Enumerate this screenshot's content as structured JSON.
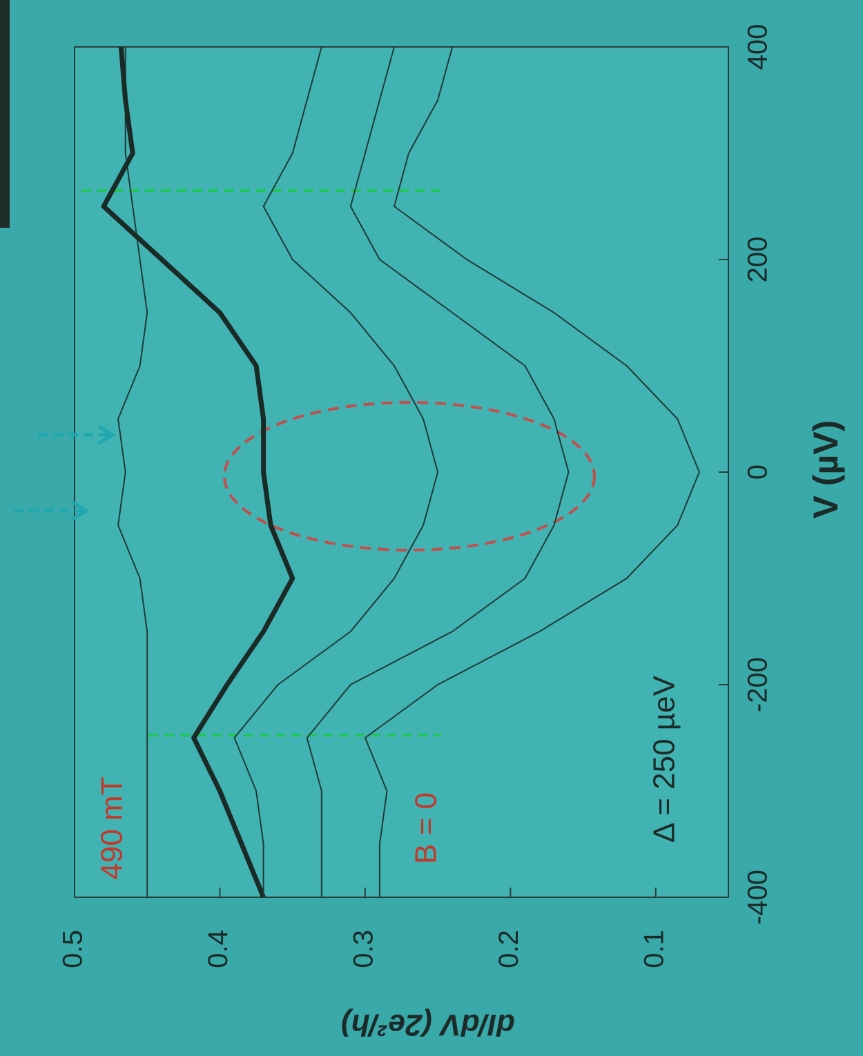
{
  "chart_data": {
    "type": "line",
    "x_label": "V (µV)",
    "y_label": "dI/dV (2e²/h)",
    "orientation": "rotated",
    "x": [
      -400,
      -350,
      -300,
      -250,
      -200,
      -150,
      -100,
      -50,
      0,
      50,
      100,
      150,
      200,
      250,
      300,
      350,
      400
    ],
    "xlim": [
      -400,
      400
    ],
    "xticks": [
      -400,
      -200,
      0,
      200,
      400
    ],
    "ylim": [
      0.05,
      0.5
    ],
    "yticks": [
      0.1,
      0.2,
      0.3,
      0.4,
      0.5
    ],
    "series": [
      {
        "name": "490 mT",
        "color": "#1f3b36",
        "values": [
          0.45,
          0.45,
          0.45,
          0.45,
          0.45,
          0.45,
          0.455,
          0.47,
          0.465,
          0.47,
          0.455,
          0.45,
          0.455,
          0.46,
          0.465,
          0.465,
          0.465
        ]
      },
      {
        "color": "#1a2a26",
        "values": [
          0.37,
          0.385,
          0.4,
          0.418,
          0.395,
          0.37,
          0.35,
          0.365,
          0.37,
          0.37,
          0.375,
          0.4,
          0.44,
          0.48,
          0.46,
          0.465,
          0.468
        ]
      },
      {
        "color": "#1f3b36",
        "values": [
          0.37,
          0.37,
          0.375,
          0.39,
          0.36,
          0.31,
          0.28,
          0.26,
          0.25,
          0.26,
          0.28,
          0.31,
          0.35,
          0.37,
          0.35,
          0.34,
          0.33
        ]
      },
      {
        "color": "#1f3b36",
        "values": [
          0.33,
          0.33,
          0.33,
          0.34,
          0.31,
          0.24,
          0.19,
          0.17,
          0.16,
          0.17,
          0.19,
          0.24,
          0.29,
          0.31,
          0.3,
          0.29,
          0.28
        ]
      },
      {
        "name": "B = 0",
        "color": "#1f3b36",
        "values": [
          0.29,
          0.29,
          0.285,
          0.3,
          0.25,
          0.18,
          0.12,
          0.085,
          0.07,
          0.085,
          0.12,
          0.17,
          0.23,
          0.28,
          0.27,
          0.25,
          0.24
        ]
      }
    ],
    "thick_series": 1,
    "annotation": "Δ = 250 µeV"
  }
}
